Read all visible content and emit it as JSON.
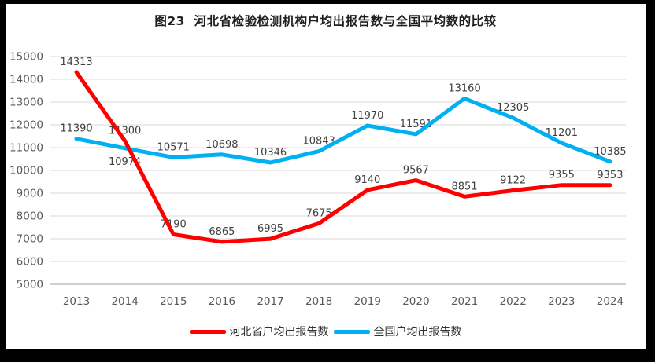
{
  "title": "图23  河北省检验检测机构户均出报告数与全国平均数的比较",
  "chart_data": {
    "type": "line",
    "categories": [
      "2013",
      "2014",
      "2015",
      "2016",
      "2017",
      "2018",
      "2019",
      "2020",
      "2021",
      "2022",
      "2023",
      "2024"
    ],
    "series": [
      {
        "name": "河北省户均出报告数",
        "color": "#FF0000",
        "values": [
          14313,
          11300,
          7190,
          6865,
          6995,
          7675,
          9140,
          9567,
          8851,
          9122,
          9355,
          9353
        ],
        "labels_below_indices": []
      },
      {
        "name": "全国户均出报告数",
        "color": "#00B0F0",
        "values": [
          11390,
          10974,
          10571,
          10698,
          10346,
          10843,
          11970,
          11591,
          13160,
          12305,
          11201,
          10385
        ],
        "labels_below_indices": [
          1
        ]
      }
    ],
    "ylim": [
      5000,
      15000
    ],
    "ytick_step": 1000,
    "yticks": [
      15000,
      14000,
      13000,
      12000,
      11000,
      10000,
      9000,
      8000,
      7000,
      6000,
      5000
    ],
    "grid": true,
    "legend_position": "bottom",
    "xlabel": "",
    "ylabel": "",
    "data_labels_shown": true,
    "colors": {
      "grid": "#D9D9D9",
      "axis": "#BFBFBF",
      "tick_text": "#595959",
      "data_label_text": "#404040",
      "frame": "#000000",
      "background": "#FFFFFF"
    }
  }
}
